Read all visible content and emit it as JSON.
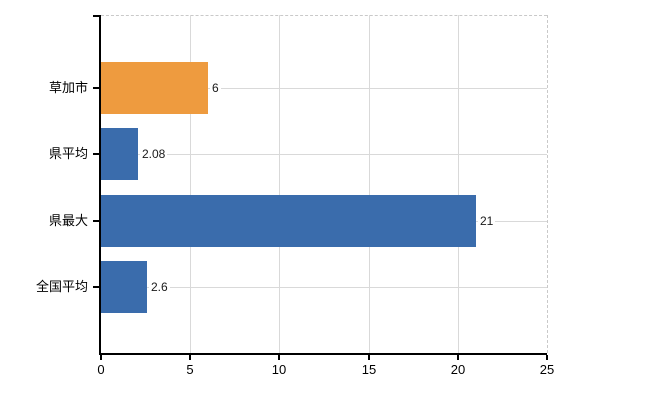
{
  "chart_data": {
    "type": "bar",
    "orientation": "horizontal",
    "title": "",
    "xlabel": "",
    "ylabel": "",
    "categories": [
      "草加市",
      "県平均",
      "県最大",
      "全国平均"
    ],
    "values": [
      6,
      2.08,
      21,
      2.6
    ],
    "value_labels": [
      "6",
      "2.08",
      "21",
      "2.6"
    ],
    "bar_colors": [
      "#EE9B3F",
      "#3A6CAC",
      "#3A6CAC",
      "#3A6CAC"
    ],
    "xlim": [
      0,
      25
    ],
    "x_ticks": [
      0,
      5,
      10,
      15,
      20,
      25
    ],
    "x_tick_labels": [
      "0",
      "5",
      "10",
      "15",
      "20",
      "25"
    ],
    "grid": true,
    "legend": false,
    "colors": {
      "highlight_bar": "#EE9B3F",
      "default_bar": "#3A6CAC",
      "gridline": "#d9d9d9",
      "dashed_border": "#c9c9c9",
      "axis": "#000000",
      "text": "#000000",
      "background": "#ffffff"
    }
  }
}
